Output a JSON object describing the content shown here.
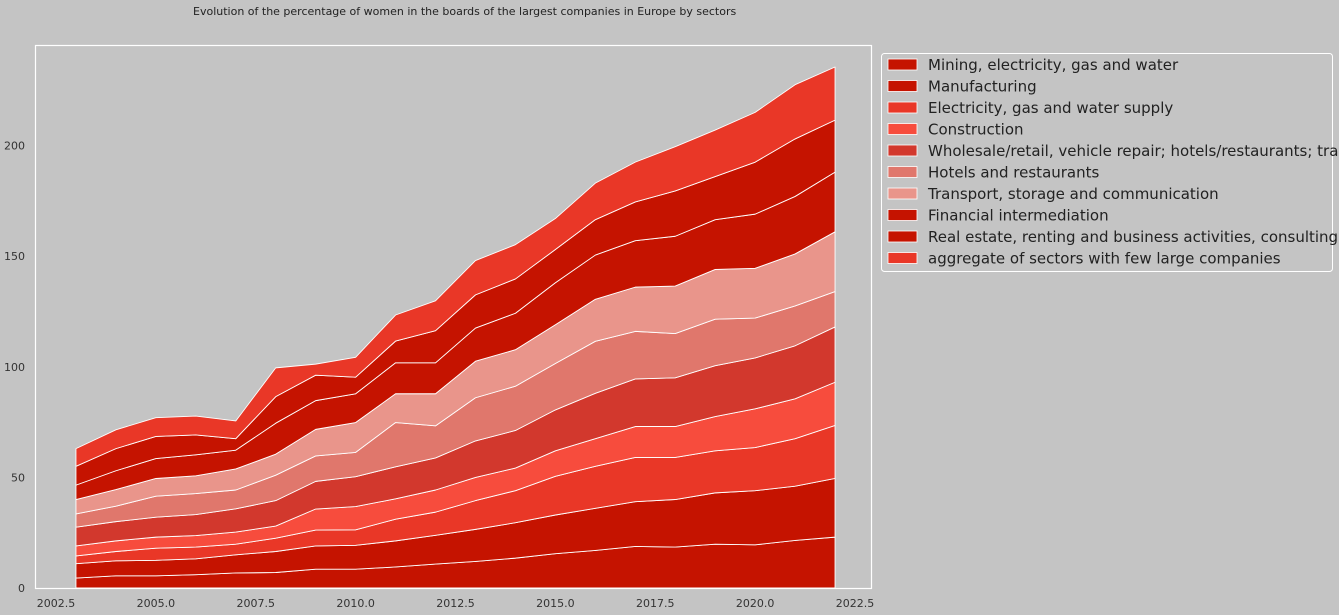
{
  "chart_data": {
    "type": "area",
    "stacked": true,
    "title": "Evolution of the percentage of women in the boards of the largest companies in Europe by sectors",
    "xlabel": "",
    "ylabel": "",
    "x": [
      2003,
      2004,
      2005,
      2006,
      2007,
      2008,
      2009,
      2010,
      2011,
      2012,
      2013,
      2014,
      2015,
      2016,
      2017,
      2018,
      2019,
      2020,
      2021,
      2022
    ],
    "xlim": [
      2002.0,
      2022.9
    ],
    "ylim": [
      0,
      245
    ],
    "x_ticks": [
      2002.5,
      2005.0,
      2007.5,
      2010.0,
      2012.5,
      2015.0,
      2017.5,
      2020.0,
      2022.5
    ],
    "x_tick_labels": [
      "2002.5",
      "2005.0",
      "2007.5",
      "2010.0",
      "2012.5",
      "2015.0",
      "2017.5",
      "2020.0",
      "2022.5"
    ],
    "y_ticks": [
      0,
      50,
      100,
      150,
      200
    ],
    "y_tick_labels": [
      "0",
      "50",
      "100",
      "150",
      "200"
    ],
    "grid": false,
    "legend_position": "outside-right-top",
    "background_color": "#c4c4c4",
    "line_color": "#ffffff",
    "series": [
      {
        "name": "Mining, electricity, gas and water",
        "color": "#c51300",
        "values": [
          4.5,
          5.5,
          5.5,
          6.0,
          6.8,
          7.0,
          8.5,
          8.5,
          9.5,
          10.8,
          12.0,
          13.5,
          15.5,
          17.0,
          18.8,
          18.5,
          19.8,
          19.5,
          21.5,
          23.0
        ]
      },
      {
        "name": "Manufacturing",
        "color": "#c51300",
        "values": [
          6.5,
          6.8,
          7.0,
          7.2,
          8.2,
          9.5,
          10.5,
          10.8,
          11.8,
          13.0,
          14.5,
          16.0,
          17.5,
          19.0,
          20.2,
          21.5,
          23.2,
          24.5,
          24.5,
          26.5
        ]
      },
      {
        "name": "Electricity, gas and water supply",
        "color": "#e93727",
        "values": [
          3.5,
          4.2,
          5.5,
          5.3,
          4.8,
          6.0,
          7.2,
          7.0,
          9.8,
          10.5,
          13.0,
          14.5,
          17.5,
          19.0,
          20.0,
          19.0,
          19.0,
          19.5,
          21.5,
          24.0
        ]
      },
      {
        "name": "Construction",
        "color": "#f74c3d",
        "values": [
          4.5,
          4.8,
          5.0,
          5.2,
          5.5,
          5.5,
          9.5,
          10.5,
          9.2,
          10.0,
          10.5,
          10.2,
          11.5,
          12.5,
          14.0,
          14.0,
          15.5,
          17.5,
          18.0,
          19.5
        ]
      },
      {
        "name": "Wholesale/retail, vehicle repair; hotels/restaurants; transport",
        "color": "#d2382d",
        "values": [
          8.5,
          8.7,
          9.0,
          9.5,
          10.5,
          11.5,
          12.5,
          13.5,
          14.5,
          14.5,
          16.5,
          17.0,
          18.5,
          20.5,
          21.5,
          22.0,
          23.0,
          23.0,
          24.0,
          25.0
        ]
      },
      {
        "name": "Hotels and restaurants",
        "color": "#e0776c",
        "values": [
          6.0,
          7.0,
          9.5,
          9.5,
          8.5,
          11.5,
          11.5,
          11.0,
          20.0,
          14.5,
          19.5,
          20.0,
          21.0,
          23.5,
          21.5,
          20.0,
          21.0,
          18.0,
          18.0,
          16.0
        ]
      },
      {
        "name": "Transport, storage and communication",
        "color": "#e9958b",
        "values": [
          6.5,
          7.5,
          8.0,
          8.0,
          9.5,
          9.5,
          12.0,
          13.5,
          13.0,
          14.5,
          16.5,
          16.5,
          17.5,
          19.0,
          20.0,
          21.5,
          22.5,
          22.5,
          23.5,
          27.0
        ]
      },
      {
        "name": "Financial intermediation",
        "color": "#c51300",
        "values": [
          6.5,
          8.5,
          9.0,
          9.5,
          8.5,
          14.0,
          13.0,
          13.0,
          14.0,
          14.0,
          15.0,
          16.5,
          19.0,
          20.0,
          21.0,
          22.5,
          22.5,
          24.5,
          26.0,
          27.0
        ]
      },
      {
        "name": "Real estate, renting and business activities, consulting",
        "color": "#c51300",
        "values": [
          8.5,
          10.0,
          10.0,
          9.0,
          5.2,
          12.0,
          11.5,
          7.5,
          9.8,
          14.5,
          15.0,
          15.5,
          15.0,
          16.0,
          17.5,
          20.5,
          19.5,
          23.5,
          26.0,
          23.5
        ]
      },
      {
        "name": "aggregate of sectors with few large companies",
        "color": "#e93727",
        "values": [
          8.0,
          8.5,
          8.5,
          8.5,
          8.0,
          13.0,
          5.0,
          9.0,
          11.8,
          13.5,
          15.5,
          15.5,
          14.0,
          16.5,
          18.0,
          20.0,
          21.0,
          22.5,
          24.5,
          24.0
        ]
      }
    ]
  }
}
